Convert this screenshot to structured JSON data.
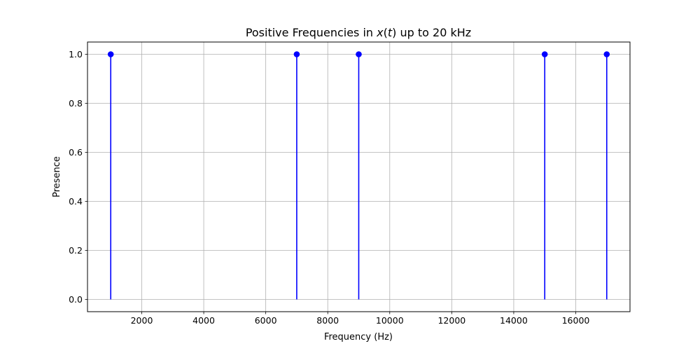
{
  "chart_data": {
    "type": "stem",
    "title": "Positive Frequencies in x(t) up to 20 kHz",
    "title_parts": {
      "before": "Positive Frequencies in ",
      "math_var": "x",
      "math_paren_open": "(",
      "math_arg": "t",
      "math_paren_close": ")",
      "after": " up to 20 kHz"
    },
    "xlabel": "Frequency (Hz)",
    "ylabel": "Presence",
    "xlim": [
      250,
      17750
    ],
    "ylim": [
      -0.05,
      1.05
    ],
    "x_ticks": [
      2000,
      4000,
      6000,
      8000,
      10000,
      12000,
      14000,
      16000
    ],
    "x_tick_labels": [
      "2000",
      "4000",
      "6000",
      "8000",
      "10000",
      "12000",
      "14000",
      "16000"
    ],
    "y_ticks": [
      0.0,
      0.2,
      0.4,
      0.6,
      0.8,
      1.0
    ],
    "y_tick_labels": [
      "0.0",
      "0.2",
      "0.4",
      "0.6",
      "0.8",
      "1.0"
    ],
    "grid": true,
    "series": [
      {
        "x": [
          1000,
          7000,
          9000,
          15000,
          17000
        ],
        "values": [
          1,
          1,
          1,
          1,
          1
        ],
        "color": "#0000ff"
      }
    ],
    "colors": {
      "stem": "#0000ff",
      "grid": "#b0b0b0",
      "axes": "#000000"
    }
  }
}
